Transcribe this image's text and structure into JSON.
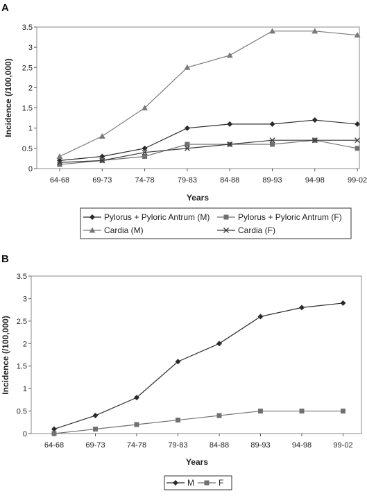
{
  "chart_data": [
    {
      "panel": "A",
      "type": "line",
      "xlabel": "Years",
      "ylabel": "Incidence (/100,000)",
      "ylim": [
        0,
        3.5
      ],
      "yticks": [
        0,
        0.5,
        1,
        1.5,
        2,
        2.5,
        3,
        3.5
      ],
      "ytick_labels": [
        "0",
        "0.5",
        "1",
        "1.5",
        "2",
        "2.5",
        "3",
        "3.5"
      ],
      "grid": false,
      "legend_position": "bottom",
      "categories": [
        "64-68",
        "69-73",
        "74-78",
        "79-83",
        "84-88",
        "89-93",
        "94-98",
        "99-02"
      ],
      "series": [
        {
          "name": "Pylorus + Pyloric Antrum (M)",
          "marker": "diamond",
          "color": "#2b2b2b",
          "values": [
            0.2,
            0.3,
            0.5,
            1.0,
            1.1,
            1.1,
            1.2,
            1.1
          ]
        },
        {
          "name": "Pylorus + Pyloric Antrum (F)",
          "marker": "square",
          "color": "#707070",
          "values": [
            0.1,
            0.2,
            0.3,
            0.6,
            0.6,
            0.6,
            0.7,
            0.5
          ]
        },
        {
          "name": "Cardia (M)",
          "marker": "triangle",
          "color": "#7a7a7a",
          "values": [
            0.3,
            0.8,
            1.5,
            2.5,
            2.8,
            3.4,
            3.4,
            3.3
          ]
        },
        {
          "name": "Cardia (F)",
          "marker": "x",
          "color": "#3a3a3a",
          "values": [
            0.15,
            0.2,
            0.4,
            0.5,
            0.6,
            0.7,
            0.7,
            0.7
          ]
        }
      ]
    },
    {
      "panel": "B",
      "type": "line",
      "xlabel": "Years",
      "ylabel": "Incidence (/100,000)",
      "ylim": [
        0,
        3.5
      ],
      "yticks": [
        0,
        0.5,
        1,
        1.5,
        2,
        2.5,
        3,
        3.5
      ],
      "ytick_labels": [
        "0",
        "0.5",
        "1",
        "1.5",
        "2",
        "2.5",
        "3",
        "3.5"
      ],
      "grid": false,
      "legend_position": "bottom",
      "categories": [
        "64-68",
        "69-73",
        "74-78",
        "79-83",
        "84-88",
        "89-93",
        "94-98",
        "99-02"
      ],
      "series": [
        {
          "name": "M",
          "marker": "diamond",
          "color": "#2b2b2b",
          "values": [
            0.1,
            0.4,
            0.8,
            1.6,
            2.0,
            2.6,
            2.8,
            2.9
          ]
        },
        {
          "name": "F",
          "marker": "square",
          "color": "#707070",
          "values": [
            0.0,
            0.1,
            0.2,
            0.3,
            0.4,
            0.5,
            0.5,
            0.5
          ]
        }
      ]
    }
  ]
}
